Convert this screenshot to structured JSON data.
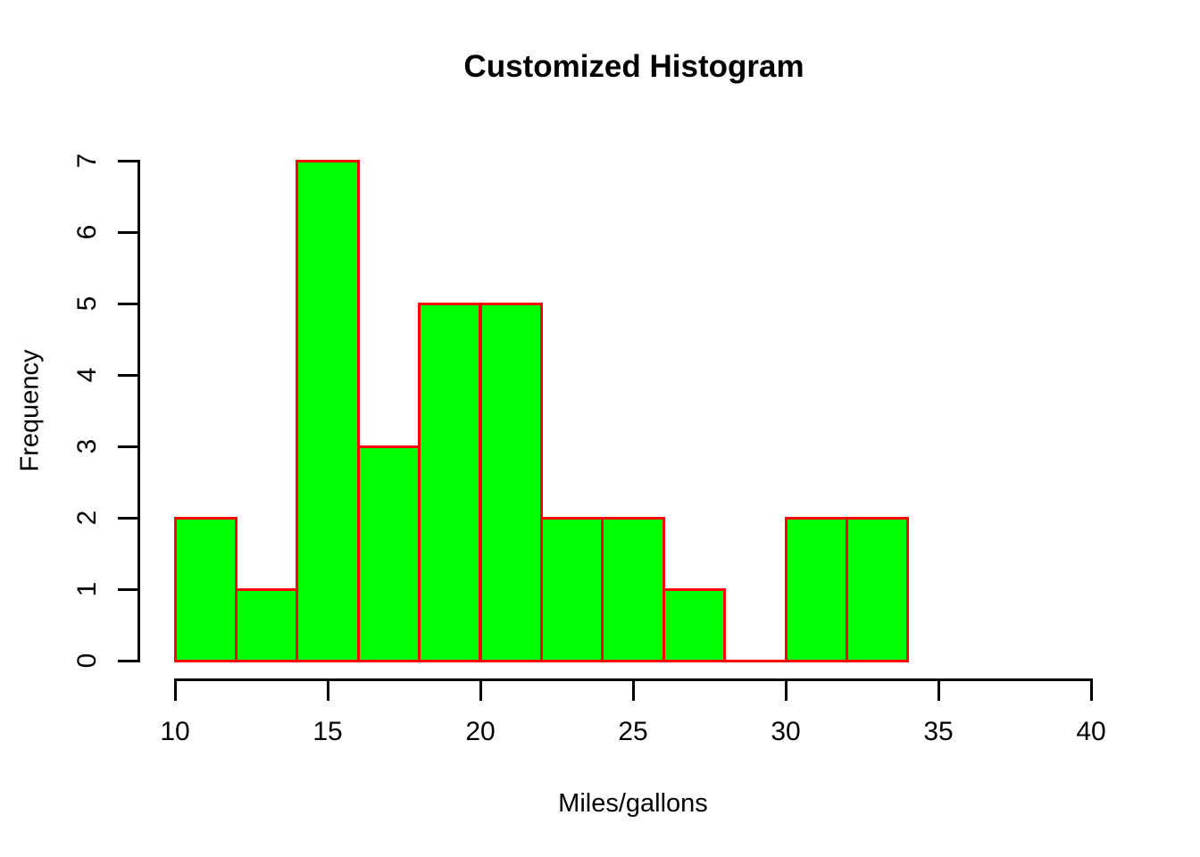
{
  "chart_data": {
    "type": "bar",
    "subtype": "histogram",
    "title": "Customized Histogram",
    "xlabel": "Miles/gallons",
    "ylabel": "Frequency",
    "bin_edges": [
      10,
      12,
      14,
      16,
      18,
      20,
      22,
      24,
      26,
      28,
      30,
      32,
      34
    ],
    "counts": [
      2,
      1,
      7,
      3,
      5,
      5,
      2,
      2,
      1,
      0,
      2,
      2
    ],
    "x_ticks": [
      10,
      15,
      20,
      25,
      30,
      35,
      40
    ],
    "y_ticks": [
      0,
      1,
      2,
      3,
      4,
      5,
      6,
      7
    ],
    "xlim": [
      10,
      40
    ],
    "ylim": [
      0,
      7
    ],
    "bar_fill_color": "#00ff00",
    "bar_border_color": "#ff0000",
    "axis_color": "#000000",
    "text_color": "#000000",
    "background_color": "#ffffff",
    "grid": false,
    "legend_position": null
  }
}
